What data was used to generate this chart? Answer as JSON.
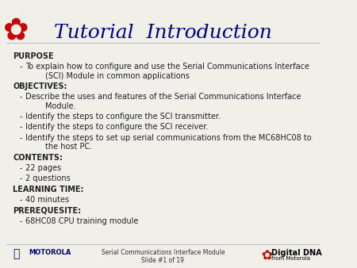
{
  "title": "Tutorial  Introduction",
  "title_color": "#00008B",
  "title_fontsize": 18,
  "bg_color": "#f0f0e8",
  "content_lines": [
    {
      "text": "PURPOSE",
      "indent": 0,
      "bold": true,
      "bullet": false
    },
    {
      "text": "To explain how to configure and use the Serial Communications Interface\n        (SCI) Module in common applications",
      "indent": 1,
      "bold": false,
      "bullet": true
    },
    {
      "text": "OBJECTIVES:",
      "indent": 0,
      "bold": true,
      "bullet": false
    },
    {
      "text": "Describe the uses and features of the Serial Communications Interface\n        Module.",
      "indent": 1,
      "bold": false,
      "bullet": true
    },
    {
      "text": "Identify the steps to configure the SCI transmitter.",
      "indent": 1,
      "bold": false,
      "bullet": true
    },
    {
      "text": "Identify the steps to configure the SCI receiver.",
      "indent": 1,
      "bold": false,
      "bullet": true
    },
    {
      "text": "Identify the steps to set up serial communications from the MC68HC08 to\n        the host PC.",
      "indent": 1,
      "bold": false,
      "bullet": true
    },
    {
      "text": "CONTENTS:",
      "indent": 0,
      "bold": true,
      "bullet": false
    },
    {
      "text": "22 pages",
      "indent": 1,
      "bold": false,
      "bullet": true
    },
    {
      "text": "2 questions",
      "indent": 1,
      "bold": false,
      "bullet": true
    },
    {
      "text": "LEARNING TIME:",
      "indent": 0,
      "bold": true,
      "bullet": false
    },
    {
      "text": "40 minutes",
      "indent": 1,
      "bold": false,
      "bullet": true
    },
    {
      "text": "PREREQUESITE:",
      "indent": 0,
      "bold": true,
      "bullet": false
    },
    {
      "text": "68HC08 CPU training module",
      "indent": 1,
      "bold": false,
      "bullet": true
    }
  ],
  "footer_center": "Serial Communications Interface Module\nSlide #1 of 19",
  "footer_color": "#333333",
  "footer_fontsize": 5.5,
  "text_fontsize": 7.0,
  "motorola_color": "#00008B",
  "digital_dna_color": "#cc0000"
}
